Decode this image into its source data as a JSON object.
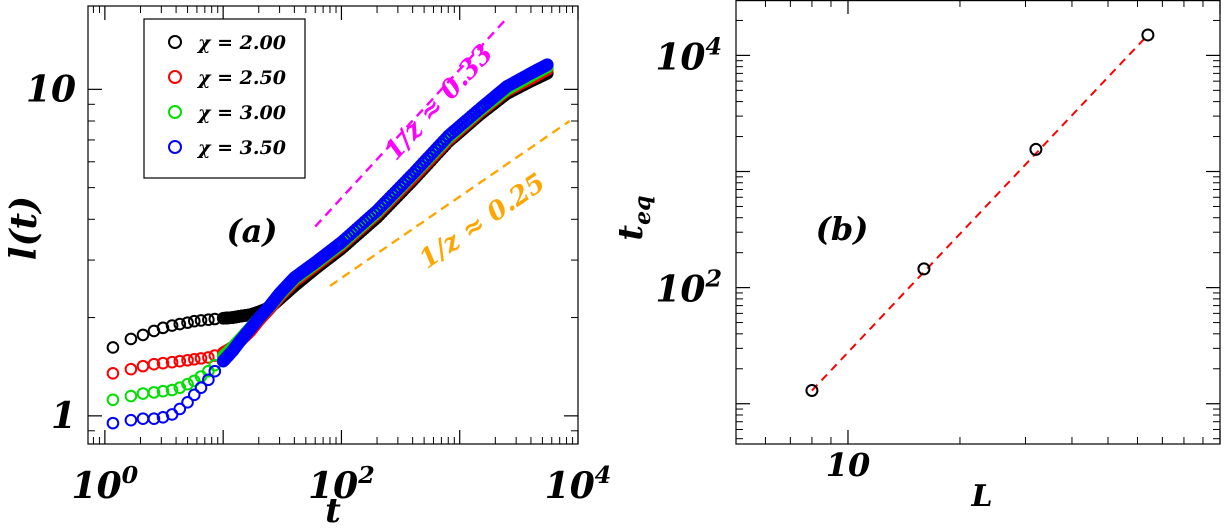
{
  "chart_data": [
    {
      "panel_label": "(a)",
      "type": "scatter",
      "x_scale": "log",
      "y_scale": "log",
      "xlabel": "t",
      "ylabel": "l(t)",
      "xlim": [
        0.72,
        10000
      ],
      "ylim": [
        0.82,
        18
      ],
      "x_tick_labels": [
        {
          "value": 1,
          "base": "10",
          "exp": "0"
        },
        {
          "value": 100,
          "base": "10",
          "exp": "2"
        },
        {
          "value": 10000,
          "base": "10",
          "exp": "4"
        }
      ],
      "y_tick_labels": [
        {
          "value": 1,
          "label": "1"
        },
        {
          "value": 10,
          "label": "10"
        }
      ],
      "legend": {
        "placement": "top-left",
        "entries": [
          {
            "label": "χ = 2.00",
            "color": "#000000"
          },
          {
            "label": "χ = 2.50",
            "color": "#ff0000"
          },
          {
            "label": "χ = 3.00",
            "color": "#00e000"
          },
          {
            "label": "χ = 3.50",
            "color": "#0000ff"
          }
        ]
      },
      "series": [
        {
          "name": "χ = 2.00",
          "color": "#000000",
          "x": [
            1.17,
            1.66,
            2.1,
            2.6,
            3.1,
            3.7,
            4.3,
            5.0,
            5.7,
            6.5,
            7.5,
            8.5,
            10,
            12,
            14,
            17,
            20,
            25,
            30,
            40,
            60,
            100,
            200,
            400,
            800,
            1500,
            2500,
            4000,
            5500
          ],
          "values": [
            1.62,
            1.72,
            1.77,
            1.82,
            1.86,
            1.89,
            1.91,
            1.93,
            1.95,
            1.96,
            1.97,
            1.98,
            1.99,
            2.0,
            2.02,
            2.04,
            2.08,
            2.15,
            2.28,
            2.5,
            2.82,
            3.25,
            4.05,
            5.25,
            6.9,
            8.4,
            9.7,
            10.6,
            11.2
          ]
        },
        {
          "name": "χ = 2.50",
          "color": "#ff0000",
          "x": [
            1.17,
            1.66,
            2.1,
            2.6,
            3.1,
            3.7,
            4.3,
            5.0,
            5.7,
            6.5,
            7.5,
            8.5,
            10,
            12,
            14,
            17,
            20,
            25,
            30,
            40,
            60,
            100,
            200,
            400,
            800,
            1500,
            2500,
            4000,
            5500
          ],
          "values": [
            1.35,
            1.39,
            1.42,
            1.44,
            1.45,
            1.46,
            1.47,
            1.48,
            1.49,
            1.5,
            1.51,
            1.53,
            1.56,
            1.62,
            1.7,
            1.82,
            1.96,
            2.14,
            2.32,
            2.58,
            2.88,
            3.32,
            4.15,
            5.35,
            7.0,
            8.55,
            9.9,
            10.8,
            11.5
          ]
        },
        {
          "name": "χ = 3.00",
          "color": "#00e000",
          "x": [
            1.17,
            1.66,
            2.1,
            2.6,
            3.1,
            3.7,
            4.3,
            5.0,
            5.7,
            6.5,
            7.5,
            8.5,
            10,
            12,
            14,
            17,
            20,
            25,
            30,
            40,
            60,
            100,
            200,
            400,
            800,
            1500,
            2500,
            4000,
            5500
          ],
          "values": [
            1.12,
            1.15,
            1.17,
            1.18,
            1.19,
            1.2,
            1.22,
            1.25,
            1.28,
            1.32,
            1.37,
            1.43,
            1.52,
            1.62,
            1.72,
            1.86,
            1.99,
            2.17,
            2.35,
            2.62,
            2.92,
            3.36,
            4.2,
            5.45,
            7.1,
            8.65,
            10.0,
            11.0,
            11.7
          ]
        },
        {
          "name": "χ = 3.50",
          "color": "#0000ff",
          "x": [
            1.17,
            1.66,
            2.1,
            2.6,
            3.1,
            3.7,
            4.3,
            5.0,
            5.7,
            6.5,
            7.5,
            8.5,
            10,
            12,
            14,
            17,
            20,
            25,
            30,
            40,
            60,
            100,
            200,
            400,
            800,
            1500,
            2500,
            4000,
            5500
          ],
          "values": [
            0.95,
            0.97,
            0.98,
            0.98,
            0.99,
            1.01,
            1.05,
            1.1,
            1.16,
            1.22,
            1.29,
            1.37,
            1.47,
            1.58,
            1.7,
            1.85,
            1.99,
            2.18,
            2.37,
            2.65,
            2.95,
            3.4,
            4.25,
            5.5,
            7.2,
            8.75,
            10.2,
            11.2,
            11.9
          ]
        }
      ],
      "annotations": [
        {
          "text": "1/z ≈ 0.33",
          "color": "#ff00ff",
          "line_x": [
            60,
            2500
          ],
          "line_y": [
            3.8,
            16.5
          ]
        },
        {
          "text": "1/z ≈ 0.25",
          "color": "#ffa500",
          "line_x": [
            80,
            8500
          ],
          "line_y": [
            2.5,
            8.0
          ]
        }
      ]
    },
    {
      "panel_label": "(b)",
      "type": "scatter",
      "x_scale": "log",
      "y_scale": "log",
      "xlabel": "L",
      "ylabel": "t",
      "ylabel_subscript": "eq",
      "xlim": [
        5.0,
        100
      ],
      "ylim": [
        4.5,
        30000
      ],
      "x_tick_labels": [
        {
          "value": 10,
          "label": "10"
        }
      ],
      "y_tick_labels": [
        {
          "value": 100,
          "base": "10",
          "exp": "2"
        },
        {
          "value": 10000,
          "base": "10",
          "exp": "4"
        }
      ],
      "series": [
        {
          "name": "t_eq",
          "color": "#000000",
          "x": [
            8,
            16,
            32,
            64
          ],
          "values": [
            13,
            145,
            1550,
            15000
          ]
        }
      ],
      "fit_line": {
        "color": "#ff0000",
        "x": [
          8,
          64
        ],
        "values": [
          13,
          15000
        ]
      }
    }
  ]
}
